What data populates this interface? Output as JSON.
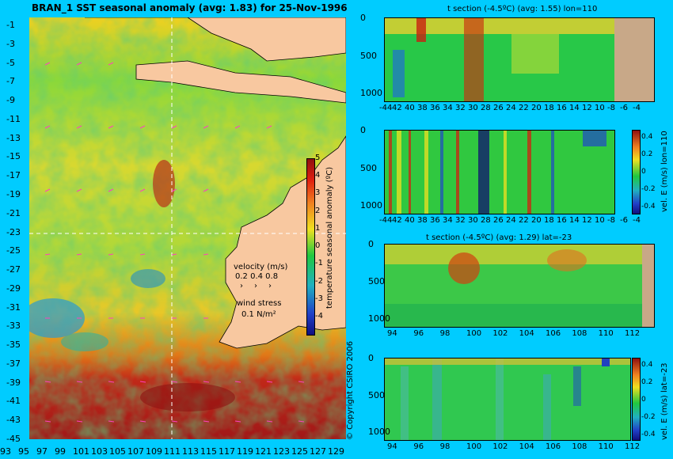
{
  "map": {
    "title": "BRAN_1 SST seasonal anomaly (avg: 1.83) for 25-Nov-1996",
    "lat_ticks": [
      "-1",
      "-3",
      "-5",
      "-7",
      "-9",
      "-11",
      "-13",
      "-15",
      "-17",
      "-19",
      "-21",
      "-23",
      "-25",
      "-27",
      "-29",
      "-31",
      "-33",
      "-35",
      "-37",
      "-39",
      "-41",
      "-43",
      "-45"
    ],
    "lon_ticks": [
      "93",
      "95",
      "97",
      "99",
      "101",
      "103",
      "105",
      "107",
      "109",
      "111",
      "113",
      "115",
      "117",
      "119",
      "121",
      "123",
      "125",
      "127",
      "129"
    ],
    "colorbar": {
      "label": "temperature seasonal anomaly (ºC)",
      "ticks": [
        "5",
        "4",
        "3",
        "2",
        "1",
        "0",
        "-1",
        "-2",
        "-3",
        "-4"
      ]
    },
    "legend": {
      "velocity_label": "velocity (m/s)",
      "velocity_values": "0.2 0.4 0.8",
      "wind_label": "wind stress",
      "wind_value": "0.1 N/m²"
    },
    "copyright": "© Copyright CSIRO 2006"
  },
  "panels": [
    {
      "title": "t section (-4.5ºC) (avg: 1.55) lon=110",
      "depth_ticks": [
        "0",
        "500",
        "1000"
      ],
      "x_ticks": [
        "-44",
        "42",
        "40",
        "38",
        "36",
        "34",
        "32",
        "30",
        "28",
        "26",
        "24",
        "22",
        "20",
        "18",
        "16",
        "14",
        "12",
        "10",
        "-8",
        "-6",
        "-4"
      ]
    },
    {
      "title": "",
      "depth_ticks": [
        "0",
        "500",
        "1000"
      ],
      "x_ticks": [
        "-44",
        "42",
        "40",
        "38",
        "36",
        "34",
        "32",
        "30",
        "28",
        "26",
        "24",
        "22",
        "20",
        "18",
        "16",
        "14",
        "12",
        "10",
        "-8",
        "-6",
        "-4"
      ],
      "colorbar": {
        "label": "vel. E (m/s) lon=110",
        "ticks": [
          "0.4",
          "0.2",
          "0",
          "-0.2",
          "-0.4"
        ]
      }
    },
    {
      "title": "t section (-4.5ºC) (avg: 1.29) lat=-23",
      "depth_ticks": [
        "0",
        "500",
        "1000"
      ],
      "x_ticks": [
        "94",
        "96",
        "98",
        "100",
        "102",
        "104",
        "106",
        "108",
        "110",
        "112"
      ]
    },
    {
      "title": "",
      "depth_ticks": [
        "0",
        "500",
        "1000"
      ],
      "x_ticks": [
        "94",
        "96",
        "98",
        "100",
        "102",
        "104",
        "106",
        "108",
        "110",
        "112"
      ],
      "colorbar": {
        "label": "vel. E (m/s) lat=-23",
        "ticks": [
          "0.4",
          "0.2",
          "0",
          "-0.2",
          "-0.4"
        ]
      }
    }
  ],
  "colors": {
    "background": "#00ccff",
    "land": "#f8c8a0",
    "section_land": "#c8a888",
    "ocean_mid": "#1cc43a"
  }
}
